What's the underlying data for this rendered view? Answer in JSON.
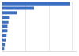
{
  "chart_data": {
    "type": "bar",
    "orientation": "horizontal",
    "categories": [
      null,
      null,
      null,
      null,
      null,
      null,
      null,
      null,
      null,
      null,
      null
    ],
    "values": [
      73,
      34,
      16,
      8,
      6.5,
      5.5,
      5.5,
      4.5,
      3.5,
      2.7,
      2
    ],
    "color": "#3b6fc4",
    "xlim": [
      0,
      80
    ],
    "xticks": [
      0,
      25,
      50,
      75
    ],
    "grid": true,
    "tick_labels": false
  }
}
